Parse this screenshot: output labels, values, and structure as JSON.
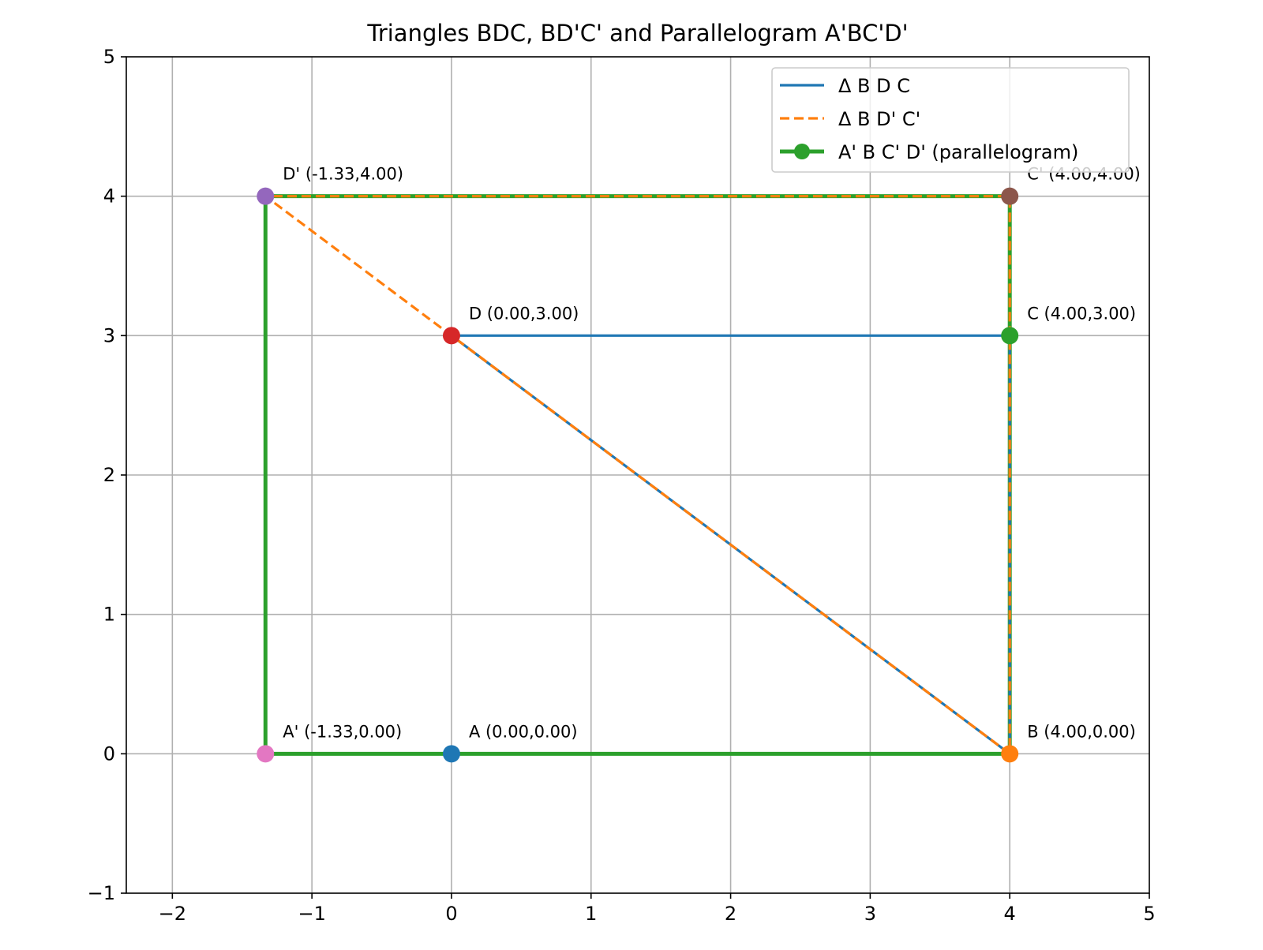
{
  "chart_data": {
    "type": "line",
    "title": "Triangles BDC, BD'C' and Parallelogram A'BC'D'",
    "xlabel": "",
    "ylabel": "",
    "xlim": [
      -2.33,
      5
    ],
    "ylim": [
      -1,
      5
    ],
    "xticks": [
      -2,
      -1,
      0,
      1,
      2,
      3,
      4,
      5
    ],
    "yticks": [
      -1,
      0,
      1,
      2,
      3,
      4,
      5
    ],
    "xtick_labels": [
      "−2",
      "−1",
      "0",
      "1",
      "2",
      "3",
      "4",
      "5"
    ],
    "ytick_labels": [
      "−1",
      "0",
      "1",
      "2",
      "3",
      "4",
      "5"
    ],
    "grid": true,
    "legend_position": "top-right",
    "series": [
      {
        "name": "Δ B D C",
        "style": "solid",
        "color": "#1f77b4",
        "x": [
          4.0,
          0.0,
          4.0,
          4.0
        ],
        "y": [
          0.0,
          3.0,
          3.0,
          0.0
        ]
      },
      {
        "name": "Δ B D' C'",
        "style": "dashed",
        "color": "#ff7f0e",
        "x": [
          4.0,
          -1.333,
          4.0,
          4.0
        ],
        "y": [
          0.0,
          4.0,
          4.0,
          0.0
        ]
      },
      {
        "name": "A' B C' D' (parallelogram)",
        "style": "solid-with-markers",
        "color": "#2ca02c",
        "x": [
          -1.333,
          4.0,
          4.0,
          -1.333,
          -1.333
        ],
        "y": [
          0.0,
          0.0,
          4.0,
          4.0,
          0.0
        ]
      }
    ],
    "points": [
      {
        "name": "A",
        "label": "A (0.00,0.00)",
        "x": 0.0,
        "y": 0.0,
        "color": "#1f77b4"
      },
      {
        "name": "B",
        "label": "B (4.00,0.00)",
        "x": 4.0,
        "y": 0.0,
        "color": "#ff7f0e"
      },
      {
        "name": "C",
        "label": "C (4.00,3.00)",
        "x": 4.0,
        "y": 3.0,
        "color": "#2ca02c"
      },
      {
        "name": "D",
        "label": "D (0.00,3.00)",
        "x": 0.0,
        "y": 3.0,
        "color": "#d62728"
      },
      {
        "name": "D'",
        "label": "D' (-1.33,4.00)",
        "x": -1.333,
        "y": 4.0,
        "color": "#9467bd"
      },
      {
        "name": "C'",
        "label": "C' (4.00,4.00)",
        "x": 4.0,
        "y": 4.0,
        "color": "#8c564b"
      },
      {
        "name": "A'",
        "label": "A' (-1.33,0.00)",
        "x": -1.333,
        "y": 0.0,
        "color": "#e377c2"
      }
    ]
  }
}
